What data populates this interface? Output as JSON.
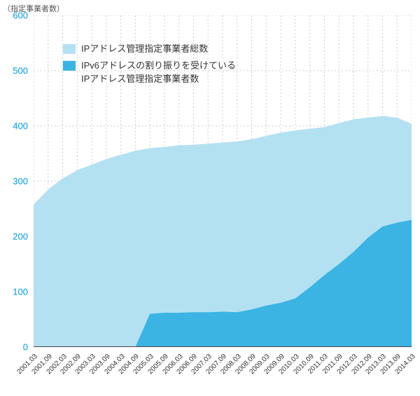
{
  "chart": {
    "type": "area",
    "y_title": "（指定事業者数）",
    "background_color": "#ffffff",
    "grid_color": "#cccccc",
    "grid_dash": "2,3",
    "axis_line_color": "#444444",
    "y_tick_label_color": "#0099dd",
    "y_tick_label_fontsize": 13,
    "x_tick_label_color": "#333333",
    "x_tick_label_fontsize": 10,
    "ylim": [
      0,
      600
    ],
    "ytick_step": 100,
    "x_categories": [
      "2001.03",
      "2001.09",
      "2002.03",
      "2002.09",
      "2003.03",
      "2003.09",
      "2004.03",
      "2004.09",
      "2005.03",
      "2005.09",
      "2006.03",
      "2006.09",
      "2007.03",
      "2007.09",
      "2008.03",
      "2008.09",
      "2009.03",
      "2009.09",
      "2010.03",
      "2010.09",
      "2011.03",
      "2011.09",
      "2012.03",
      "2012.09",
      "2013.03",
      "2013.09",
      "2014.03"
    ],
    "series": [
      {
        "name": "IPアドレス管理指定事業者総数",
        "color": "#b4e1f2",
        "values": [
          258,
          285,
          305,
          320,
          330,
          340,
          348,
          355,
          360,
          362,
          365,
          366,
          368,
          370,
          372,
          376,
          382,
          388,
          392,
          395,
          398,
          405,
          412,
          415,
          418,
          415,
          404
        ]
      },
      {
        "name": "IPv6アドレスの割り振りを受けている\nIPアドレス管理指定事業者数",
        "color": "#3bb4e4",
        "values": [
          0,
          0,
          0,
          0,
          0,
          0,
          0,
          0,
          60,
          62,
          62,
          63,
          63,
          64,
          63,
          68,
          75,
          80,
          88,
          108,
          130,
          150,
          172,
          198,
          218,
          225,
          230
        ]
      }
    ],
    "legend": {
      "position": "top-left-inside",
      "swatch_width": 18,
      "swatch_height": 14,
      "fontsize": 13
    }
  }
}
